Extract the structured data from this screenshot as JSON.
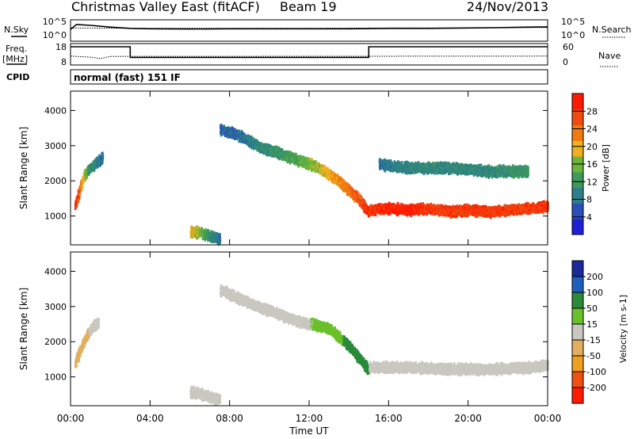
{
  "header": {
    "station": "Christmas Valley East",
    "data_type": "(fitACF)",
    "beam": "Beam 19",
    "date": "24/Nov/2013"
  },
  "top_strip": {
    "nsky_label": "N.Sky",
    "nsky_ticks": [
      "10^5",
      "10^0"
    ],
    "nsearch_label": "N.Search",
    "nsearch_ticks": [
      "10^5",
      "10^0"
    ],
    "freq_label": "Freq.",
    "freq_unit": "[MHz]",
    "freq_ticks": [
      "18",
      "8"
    ],
    "nave_label": "Nave",
    "nave_ticks": [
      "60",
      "0"
    ],
    "cpid_label": "CPID",
    "cpid_value": "normal (fast) 151 IF"
  },
  "colors": {
    "power_scale": [
      "#1f1fd6",
      "#2a4fb8",
      "#2c7f8a",
      "#3e9a5a",
      "#6bb53a",
      "#f0b020",
      "#f07a10",
      "#f04a10",
      "#ff1a00"
    ],
    "velocity_scale": [
      "#1a2a9a",
      "#1f5fc0",
      "#2a8a3a",
      "#6ac02a",
      "#c8c8c0",
      "#e0b060",
      "#f0a020",
      "#f05010",
      "#ff1a00"
    ]
  },
  "chart_data": [
    {
      "type": "line",
      "panel": "search-noise",
      "x_range": [
        0,
        24
      ],
      "series": [
        {
          "name": "N.Sky",
          "x": [
            0,
            0.3,
            1,
            2,
            3,
            4,
            6,
            8,
            10,
            12,
            14,
            16,
            18,
            20,
            22,
            23,
            24
          ],
          "y": [
            0.55,
            0.78,
            0.74,
            0.66,
            0.6,
            0.58,
            0.57,
            0.58,
            0.58,
            0.58,
            0.58,
            0.6,
            0.6,
            0.62,
            0.64,
            0.66,
            0.67
          ]
        },
        {
          "name": "N.Search",
          "x": [
            0,
            4,
            8,
            12,
            16,
            20,
            24
          ],
          "y": [
            0.62,
            0.6,
            0.6,
            0.6,
            0.62,
            0.62,
            0.64
          ]
        }
      ]
    },
    {
      "type": "line",
      "panel": "frequency-nave",
      "x_range": [
        0,
        24
      ],
      "series": [
        {
          "name": "Freq.",
          "x": [
            0,
            3.0,
            3.0,
            15.0,
            15.0,
            24
          ],
          "y": [
            16.5,
            16.5,
            11.5,
            11.5,
            16.5,
            16.5
          ]
        },
        {
          "name": "Nave",
          "x": [
            0,
            1.0,
            1.5,
            2,
            24
          ],
          "y": [
            25,
            22,
            18,
            24,
            25
          ]
        }
      ]
    },
    {
      "type": "heatmap",
      "panel": "power",
      "xlabel": "Time UT",
      "ylabel": "Slant Range [km]",
      "xlim": [
        0,
        24
      ],
      "ylim": [
        180,
        4550
      ],
      "x_ticks": [
        "00:00",
        "04:00",
        "08:00",
        "12:00",
        "16:00",
        "20:00",
        "00:00"
      ],
      "y_ticks": [
        1000,
        2000,
        3000,
        4000
      ],
      "colorbar": {
        "label": "Power [dB]",
        "ticks": [
          4,
          8,
          12,
          16,
          20,
          24,
          28
        ],
        "range": [
          0,
          32
        ]
      },
      "features": [
        {
          "x": [
            0.2,
            0.4,
            0.6,
            0.8,
            1.0,
            1.2,
            1.4,
            1.6
          ],
          "range_km": [
            1300,
            1700,
            2100,
            2300,
            2400,
            2500,
            2600,
            2700
          ],
          "power_db": [
            30,
            26,
            20,
            14,
            10,
            10,
            8,
            8
          ]
        },
        {
          "x": [
            6.0,
            6.5,
            7.0,
            7.5
          ],
          "range_km": [
            600,
            550,
            450,
            380
          ],
          "power_db": [
            20,
            16,
            10,
            8
          ]
        },
        {
          "x": [
            7.5,
            8.5,
            9.5,
            10.5,
            11.5,
            12.5,
            13.5,
            14.5,
            15.0
          ],
          "range_km": [
            3500,
            3300,
            3000,
            2800,
            2600,
            2400,
            2000,
            1500,
            1100
          ],
          "power_db": [
            6,
            8,
            10,
            12,
            14,
            18,
            22,
            26,
            30
          ]
        },
        {
          "x": [
            15.0,
            16.0,
            17.0,
            18.0,
            19.0,
            20.0,
            21.0,
            22.0,
            23.0,
            24.0
          ],
          "range_km": [
            1200,
            1250,
            1200,
            1250,
            1150,
            1200,
            1150,
            1200,
            1250,
            1300
          ],
          "power_db": [
            28,
            30,
            30,
            28,
            28,
            28,
            28,
            28,
            28,
            28
          ]
        },
        {
          "x": [
            15.5,
            17.0,
            19.0,
            21.0,
            23.0
          ],
          "range_km": [
            2500,
            2400,
            2400,
            2300,
            2300
          ],
          "power_db": [
            8,
            10,
            10,
            10,
            12
          ]
        }
      ]
    },
    {
      "type": "heatmap",
      "panel": "velocity",
      "xlabel": "Time UT",
      "ylabel": "Slant Range [km]",
      "xlim": [
        0,
        24
      ],
      "ylim": [
        180,
        4550
      ],
      "x_ticks": [
        "00:00",
        "04:00",
        "08:00",
        "12:00",
        "16:00",
        "20:00",
        "00:00"
      ],
      "y_ticks": [
        1000,
        2000,
        3000,
        4000
      ],
      "colorbar": {
        "label": "Velocity [m s-1]",
        "ticks": [
          200,
          100,
          50,
          15,
          -15,
          -50,
          -100,
          -200
        ],
        "range": [
          -250,
          250
        ]
      },
      "features": [
        {
          "x": [
            0.2,
            0.6,
            1.0,
            1.4
          ],
          "range_km": [
            1400,
            2000,
            2400,
            2600
          ],
          "velocity_ms": [
            -20,
            -30,
            -10,
            0
          ]
        },
        {
          "x": [
            6.0,
            6.5,
            7.0,
            7.5
          ],
          "range_km": [
            600,
            550,
            450,
            380
          ],
          "velocity_ms": [
            0,
            0,
            5,
            5
          ]
        },
        {
          "x": [
            7.5,
            9.5,
            11.5,
            13.0,
            14.0,
            15.0
          ],
          "range_km": [
            3500,
            3000,
            2600,
            2400,
            1900,
            1200
          ],
          "velocity_ms": [
            0,
            0,
            5,
            30,
            60,
            60
          ]
        },
        {
          "x": [
            15.0,
            17.0,
            19.0,
            21.0,
            23.0,
            24.0
          ],
          "range_km": [
            1300,
            1300,
            1250,
            1250,
            1300,
            1350
          ],
          "velocity_ms": [
            0,
            0,
            0,
            0,
            0,
            0
          ]
        }
      ]
    }
  ]
}
